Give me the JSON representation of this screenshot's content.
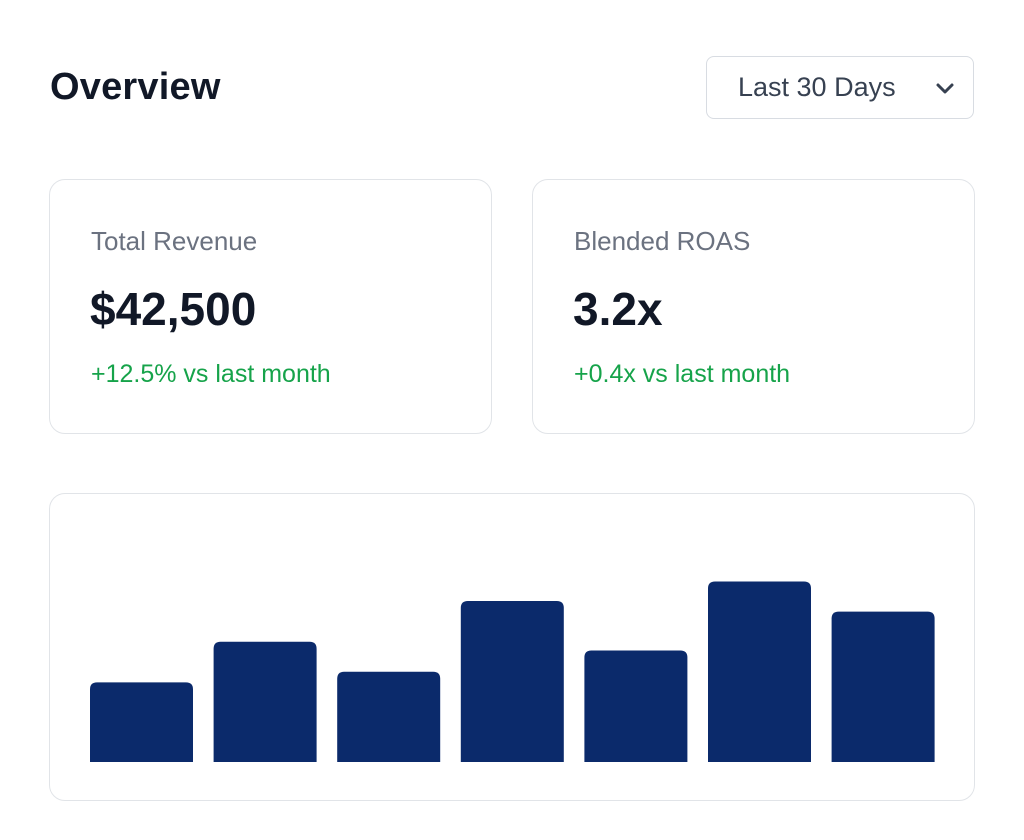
{
  "header": {
    "title": "Overview",
    "range_select": {
      "selected": "Last 30 Days",
      "icon": "chevron-down-icon"
    }
  },
  "kpis": [
    {
      "label": "Total Revenue",
      "value": "$42,500",
      "delta": "+12.5% vs last month"
    },
    {
      "label": "Blended ROAS",
      "value": "3.2x",
      "delta": "+0.4x vs last month"
    }
  ],
  "colors": {
    "bar": "#0b2a6b",
    "positive": "#16a34a",
    "title": "#111827",
    "border": "#e1e4e8"
  },
  "chart_data": {
    "type": "bar",
    "categories": [
      "",
      "",
      "",
      "",
      "",
      "",
      ""
    ],
    "values": [
      45,
      68,
      51,
      91,
      63,
      102,
      85
    ],
    "title": "",
    "xlabel": "",
    "ylabel": "",
    "ylim": [
      0,
      130
    ],
    "grid": false,
    "legend": "none"
  }
}
